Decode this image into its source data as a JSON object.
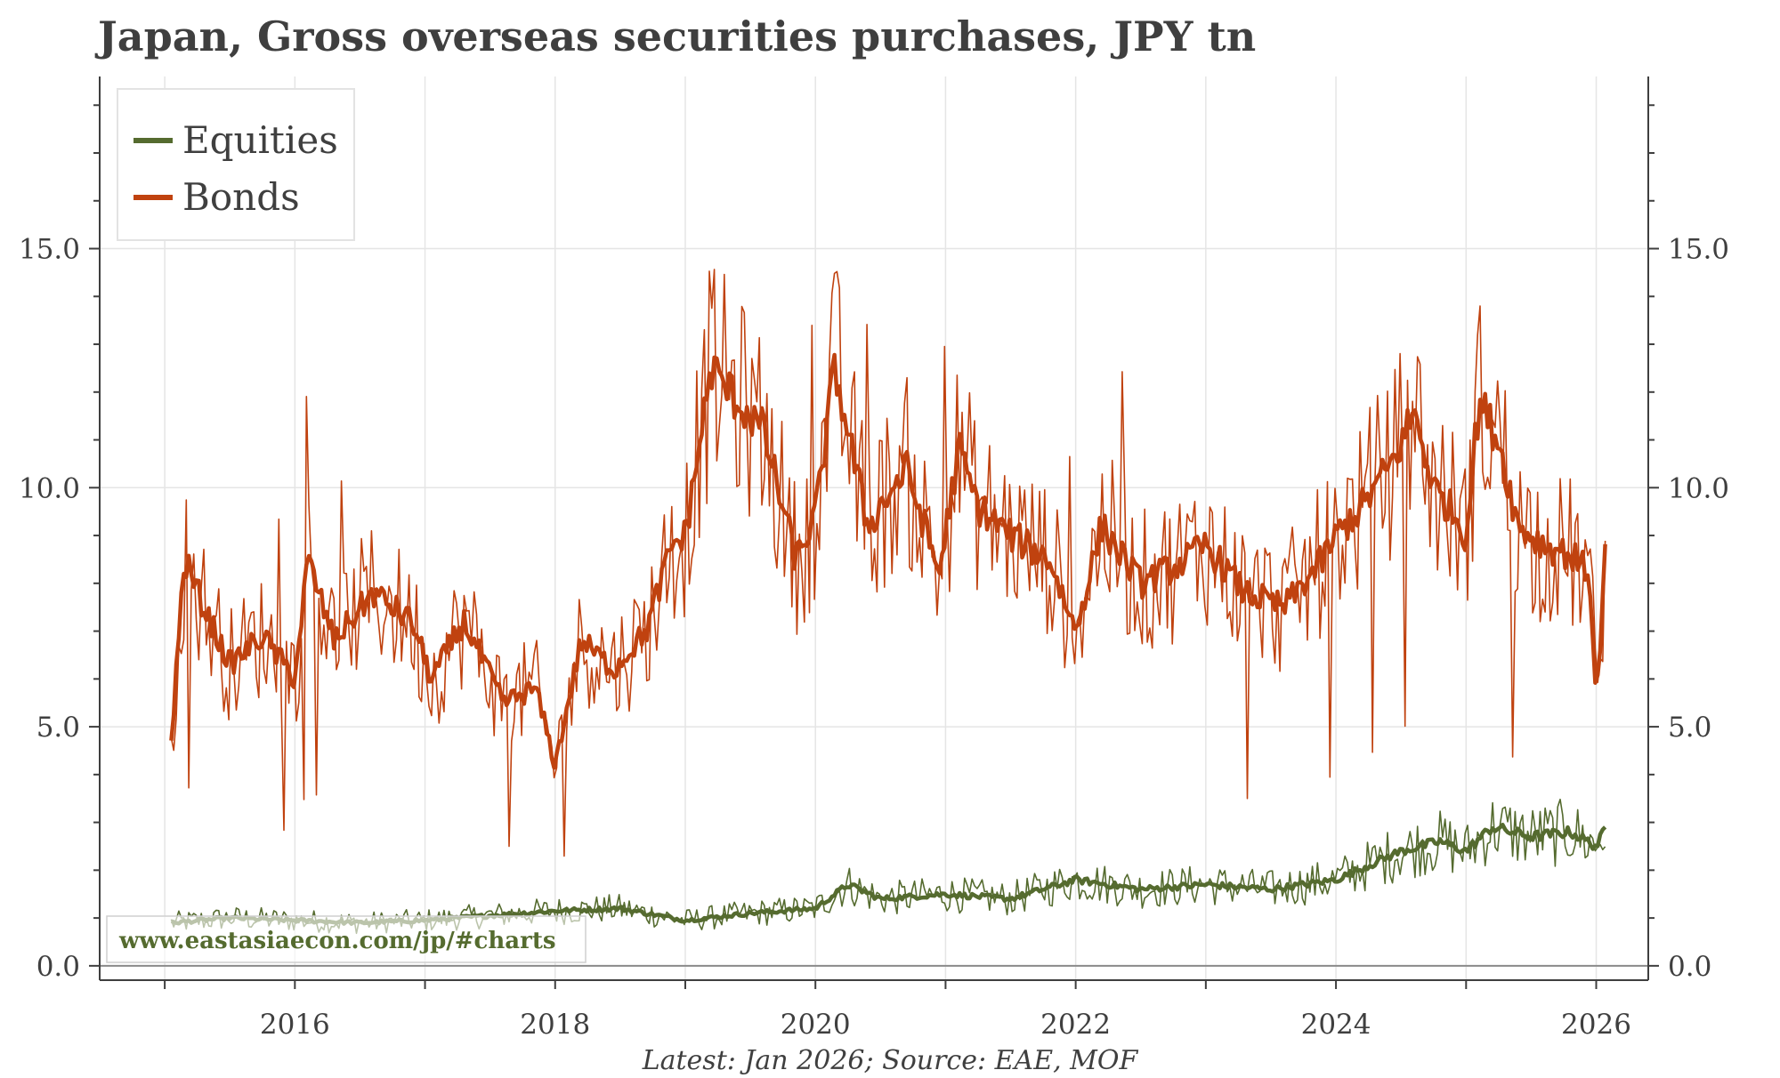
{
  "chart_data": {
    "type": "line",
    "title": "Japan, Gross overseas securities purchases, JPY tn",
    "note": "Latest: Jan 2026; Source: EAE, MOF",
    "watermark": "www.eastasiaecon.com/jp/#charts",
    "xlabel": "",
    "ylabel": "",
    "xlim": [
      2014.5,
      2026.4
    ],
    "ylim": [
      -0.3,
      18.6
    ],
    "x_ticks": [
      "2016",
      "2018",
      "2020",
      "2022",
      "2024",
      "2026"
    ],
    "x_tick_values": [
      2016,
      2018,
      2020,
      2022,
      2024,
      2026
    ],
    "y_ticks": [
      "0.0",
      "5.0",
      "10.0",
      "15.0"
    ],
    "y_tick_values": [
      0,
      5,
      10,
      15
    ],
    "legend": [
      "Equities",
      "Bonds"
    ],
    "colors": {
      "equities": "#556b2f",
      "bonds": "#c0420f",
      "grid": "#e5e5e5",
      "axis": "#3f3f3f"
    },
    "series": [
      {
        "name": "Equities",
        "note": "weekly (thin) with moving average (thick); values are approximate readings",
        "x": [
          2015.05,
          2015.5,
          2016.0,
          2016.5,
          2017.0,
          2017.5,
          2018.0,
          2018.5,
          2019.0,
          2019.5,
          2020.0,
          2020.25,
          2020.5,
          2021.0,
          2021.5,
          2022.0,
          2022.5,
          2023.0,
          2023.5,
          2024.0,
          2024.5,
          2024.8,
          2025.0,
          2025.2,
          2025.5,
          2025.8,
          2026.0,
          2026.08
        ],
        "values": [
          0.9,
          1.0,
          0.95,
          0.9,
          0.95,
          1.05,
          1.15,
          1.2,
          0.95,
          1.1,
          1.2,
          1.7,
          1.4,
          1.5,
          1.4,
          1.8,
          1.6,
          1.7,
          1.6,
          1.8,
          2.4,
          2.6,
          2.4,
          2.9,
          2.7,
          2.8,
          2.5,
          2.9
        ]
      },
      {
        "name": "Bonds",
        "note": "weekly (thin) with moving average (thick); values are approximate readings",
        "x": [
          2015.05,
          2015.15,
          2015.3,
          2015.5,
          2015.75,
          2016.0,
          2016.1,
          2016.3,
          2016.6,
          2016.9,
          2017.05,
          2017.3,
          2017.6,
          2017.85,
          2018.0,
          2018.2,
          2018.45,
          2018.7,
          2018.9,
          2019.0,
          2019.2,
          2019.4,
          2019.6,
          2019.85,
          2020.0,
          2020.15,
          2020.4,
          2020.7,
          2020.95,
          2021.1,
          2021.25,
          2021.5,
          2021.8,
          2022.0,
          2022.2,
          2022.5,
          2022.8,
          2023.0,
          2023.3,
          2023.6,
          2023.9,
          2024.0,
          2024.2,
          2024.45,
          2024.6,
          2024.75,
          2024.9,
          2025.0,
          2025.1,
          2025.25,
          2025.4,
          2025.6,
          2025.8,
          2025.95,
          2026.0,
          2026.08
        ],
        "values": [
          4.7,
          8.5,
          7.5,
          6.3,
          6.9,
          6.0,
          8.5,
          6.8,
          7.8,
          7.2,
          6.0,
          7.2,
          5.5,
          5.8,
          4.2,
          6.8,
          6.2,
          7.0,
          8.8,
          9.0,
          12.5,
          11.8,
          11.2,
          8.5,
          9.4,
          12.5,
          9.2,
          10.4,
          8.2,
          10.8,
          9.6,
          9.0,
          8.5,
          7.0,
          9.2,
          8.0,
          8.4,
          8.8,
          7.8,
          7.5,
          8.5,
          9.0,
          9.6,
          10.6,
          11.6,
          10.0,
          9.5,
          9.0,
          11.8,
          11.0,
          9.2,
          8.8,
          8.6,
          8.2,
          5.4,
          9.1
        ]
      }
    ]
  }
}
